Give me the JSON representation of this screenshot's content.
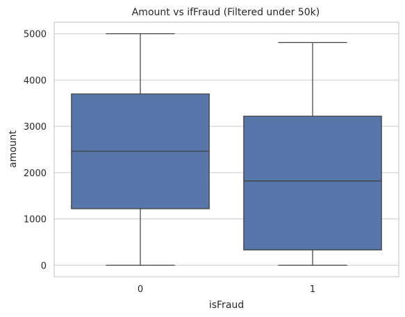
{
  "chart_data": {
    "type": "box",
    "title": "Amount vs ifFraud (Filtered under 50k)",
    "xlabel": "isFraud",
    "ylabel": "amount",
    "categories": [
      "0",
      "1"
    ],
    "ylim": [
      -250,
      5250
    ],
    "yticks": [
      0,
      1000,
      2000,
      3000,
      4000,
      5000
    ],
    "grid": "y",
    "box_color": "#5876a9",
    "line_color": "#404040",
    "boxes": [
      {
        "category": "0",
        "whisker_low": 0,
        "q1": 1220,
        "median": 2460,
        "q3": 3700,
        "whisker_high": 5000
      },
      {
        "category": "1",
        "whisker_low": 0,
        "q1": 330,
        "median": 1820,
        "q3": 3220,
        "whisker_high": 4810
      }
    ]
  }
}
